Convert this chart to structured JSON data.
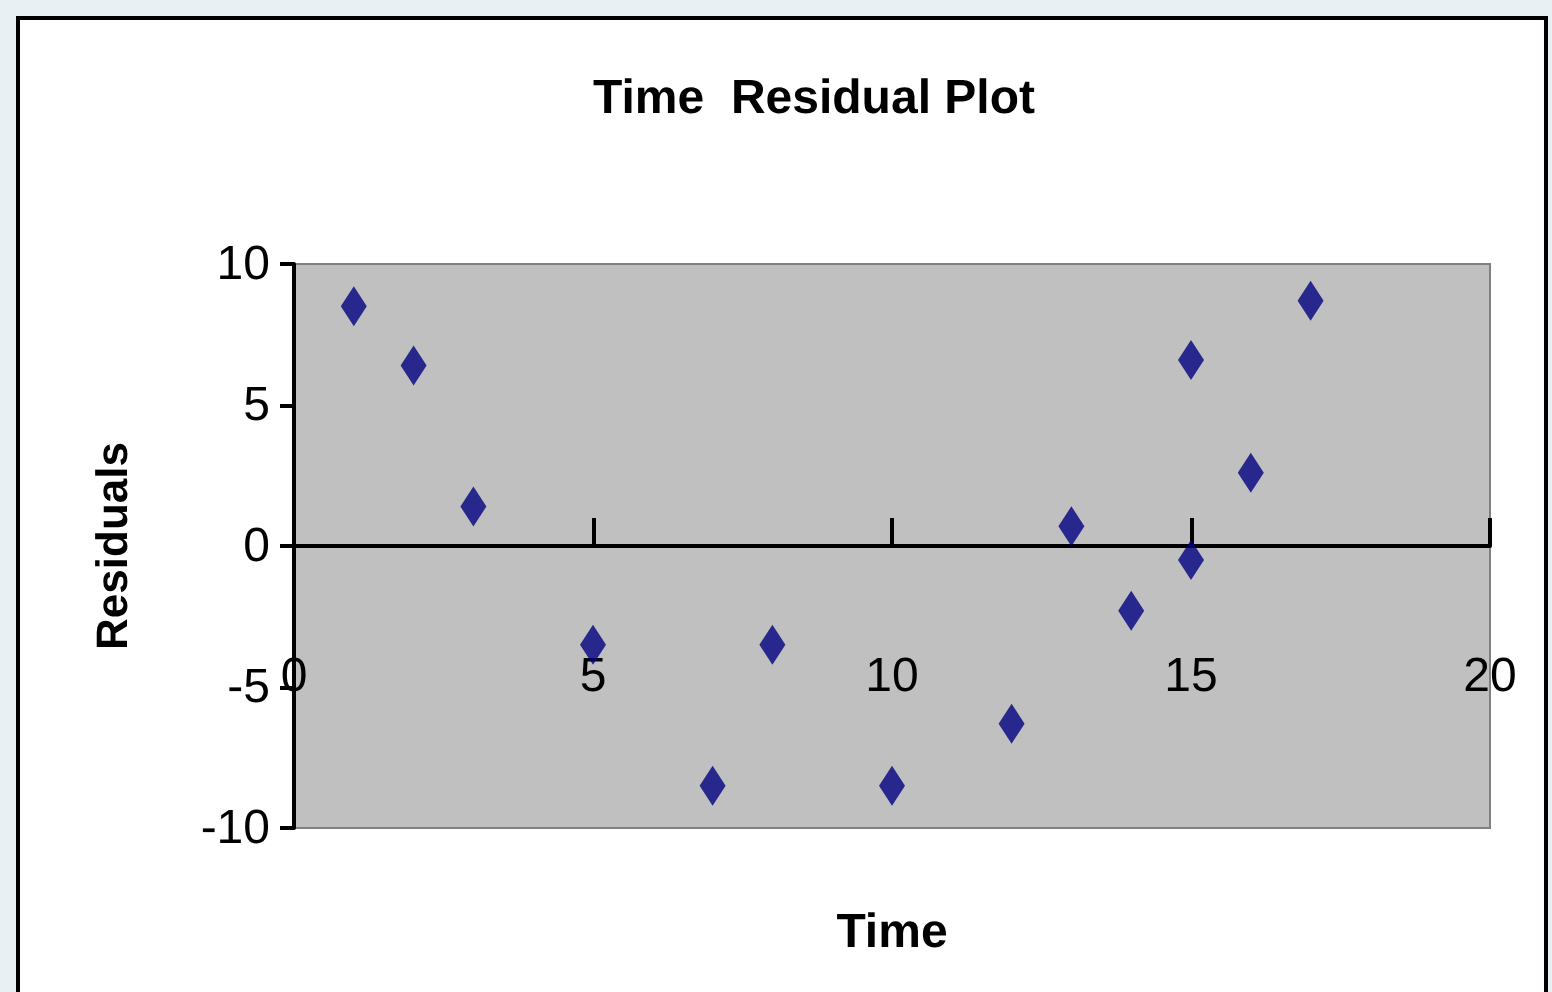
{
  "chart_data": {
    "type": "scatter",
    "title": "Time  Residual Plot",
    "xlabel": "Time",
    "ylabel": "Residuals",
    "x": [
      1,
      2,
      3,
      5,
      7,
      8,
      10,
      12,
      13,
      14,
      15,
      15,
      16,
      17
    ],
    "series": [
      {
        "color": "#000080",
        "values": [
          8.5,
          6.4,
          1.4,
          -3.5,
          -8.5,
          -3.5,
          -8.5,
          -6.3,
          0.7,
          -2.3,
          6.6,
          -0.5,
          2.6,
          8.7
        ]
      }
    ],
    "xlim": [
      0,
      20
    ],
    "xticks": [
      0,
      5,
      10,
      15,
      20
    ],
    "ylim": [
      -10,
      10
    ],
    "yticks": [
      -10,
      -5,
      0,
      5,
      10
    ],
    "grid": false,
    "marker": "diamond"
  }
}
